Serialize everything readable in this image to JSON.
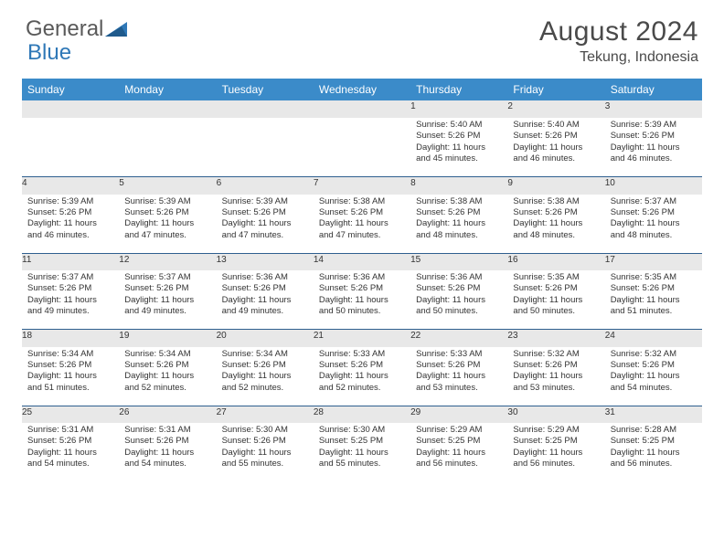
{
  "brand": {
    "part1": "General",
    "part2": "Blue"
  },
  "title": "August 2024",
  "location": "Tekung, Indonesia",
  "colors": {
    "header_bg": "#3b8bc9",
    "header_text": "#ffffff",
    "daynum_bg": "#e8e8e8",
    "row_border": "#2f5f8f",
    "logo_blue": "#2f78b7",
    "text": "#333333"
  },
  "weekdays": [
    "Sunday",
    "Monday",
    "Tuesday",
    "Wednesday",
    "Thursday",
    "Friday",
    "Saturday"
  ],
  "first_weekday_index": 4,
  "days": [
    {
      "n": 1,
      "sunrise": "5:40 AM",
      "sunset": "5:26 PM",
      "daylight": "11 hours and 45 minutes."
    },
    {
      "n": 2,
      "sunrise": "5:40 AM",
      "sunset": "5:26 PM",
      "daylight": "11 hours and 46 minutes."
    },
    {
      "n": 3,
      "sunrise": "5:39 AM",
      "sunset": "5:26 PM",
      "daylight": "11 hours and 46 minutes."
    },
    {
      "n": 4,
      "sunrise": "5:39 AM",
      "sunset": "5:26 PM",
      "daylight": "11 hours and 46 minutes."
    },
    {
      "n": 5,
      "sunrise": "5:39 AM",
      "sunset": "5:26 PM",
      "daylight": "11 hours and 47 minutes."
    },
    {
      "n": 6,
      "sunrise": "5:39 AM",
      "sunset": "5:26 PM",
      "daylight": "11 hours and 47 minutes."
    },
    {
      "n": 7,
      "sunrise": "5:38 AM",
      "sunset": "5:26 PM",
      "daylight": "11 hours and 47 minutes."
    },
    {
      "n": 8,
      "sunrise": "5:38 AM",
      "sunset": "5:26 PM",
      "daylight": "11 hours and 48 minutes."
    },
    {
      "n": 9,
      "sunrise": "5:38 AM",
      "sunset": "5:26 PM",
      "daylight": "11 hours and 48 minutes."
    },
    {
      "n": 10,
      "sunrise": "5:37 AM",
      "sunset": "5:26 PM",
      "daylight": "11 hours and 48 minutes."
    },
    {
      "n": 11,
      "sunrise": "5:37 AM",
      "sunset": "5:26 PM",
      "daylight": "11 hours and 49 minutes."
    },
    {
      "n": 12,
      "sunrise": "5:37 AM",
      "sunset": "5:26 PM",
      "daylight": "11 hours and 49 minutes."
    },
    {
      "n": 13,
      "sunrise": "5:36 AM",
      "sunset": "5:26 PM",
      "daylight": "11 hours and 49 minutes."
    },
    {
      "n": 14,
      "sunrise": "5:36 AM",
      "sunset": "5:26 PM",
      "daylight": "11 hours and 50 minutes."
    },
    {
      "n": 15,
      "sunrise": "5:36 AM",
      "sunset": "5:26 PM",
      "daylight": "11 hours and 50 minutes."
    },
    {
      "n": 16,
      "sunrise": "5:35 AM",
      "sunset": "5:26 PM",
      "daylight": "11 hours and 50 minutes."
    },
    {
      "n": 17,
      "sunrise": "5:35 AM",
      "sunset": "5:26 PM",
      "daylight": "11 hours and 51 minutes."
    },
    {
      "n": 18,
      "sunrise": "5:34 AM",
      "sunset": "5:26 PM",
      "daylight": "11 hours and 51 minutes."
    },
    {
      "n": 19,
      "sunrise": "5:34 AM",
      "sunset": "5:26 PM",
      "daylight": "11 hours and 52 minutes."
    },
    {
      "n": 20,
      "sunrise": "5:34 AM",
      "sunset": "5:26 PM",
      "daylight": "11 hours and 52 minutes."
    },
    {
      "n": 21,
      "sunrise": "5:33 AM",
      "sunset": "5:26 PM",
      "daylight": "11 hours and 52 minutes."
    },
    {
      "n": 22,
      "sunrise": "5:33 AM",
      "sunset": "5:26 PM",
      "daylight": "11 hours and 53 minutes."
    },
    {
      "n": 23,
      "sunrise": "5:32 AM",
      "sunset": "5:26 PM",
      "daylight": "11 hours and 53 minutes."
    },
    {
      "n": 24,
      "sunrise": "5:32 AM",
      "sunset": "5:26 PM",
      "daylight": "11 hours and 54 minutes."
    },
    {
      "n": 25,
      "sunrise": "5:31 AM",
      "sunset": "5:26 PM",
      "daylight": "11 hours and 54 minutes."
    },
    {
      "n": 26,
      "sunrise": "5:31 AM",
      "sunset": "5:26 PM",
      "daylight": "11 hours and 54 minutes."
    },
    {
      "n": 27,
      "sunrise": "5:30 AM",
      "sunset": "5:26 PM",
      "daylight": "11 hours and 55 minutes."
    },
    {
      "n": 28,
      "sunrise": "5:30 AM",
      "sunset": "5:25 PM",
      "daylight": "11 hours and 55 minutes."
    },
    {
      "n": 29,
      "sunrise": "5:29 AM",
      "sunset": "5:25 PM",
      "daylight": "11 hours and 56 minutes."
    },
    {
      "n": 30,
      "sunrise": "5:29 AM",
      "sunset": "5:25 PM",
      "daylight": "11 hours and 56 minutes."
    },
    {
      "n": 31,
      "sunrise": "5:28 AM",
      "sunset": "5:25 PM",
      "daylight": "11 hours and 56 minutes."
    }
  ],
  "labels": {
    "sunrise": "Sunrise:",
    "sunset": "Sunset:",
    "daylight": "Daylight:"
  }
}
